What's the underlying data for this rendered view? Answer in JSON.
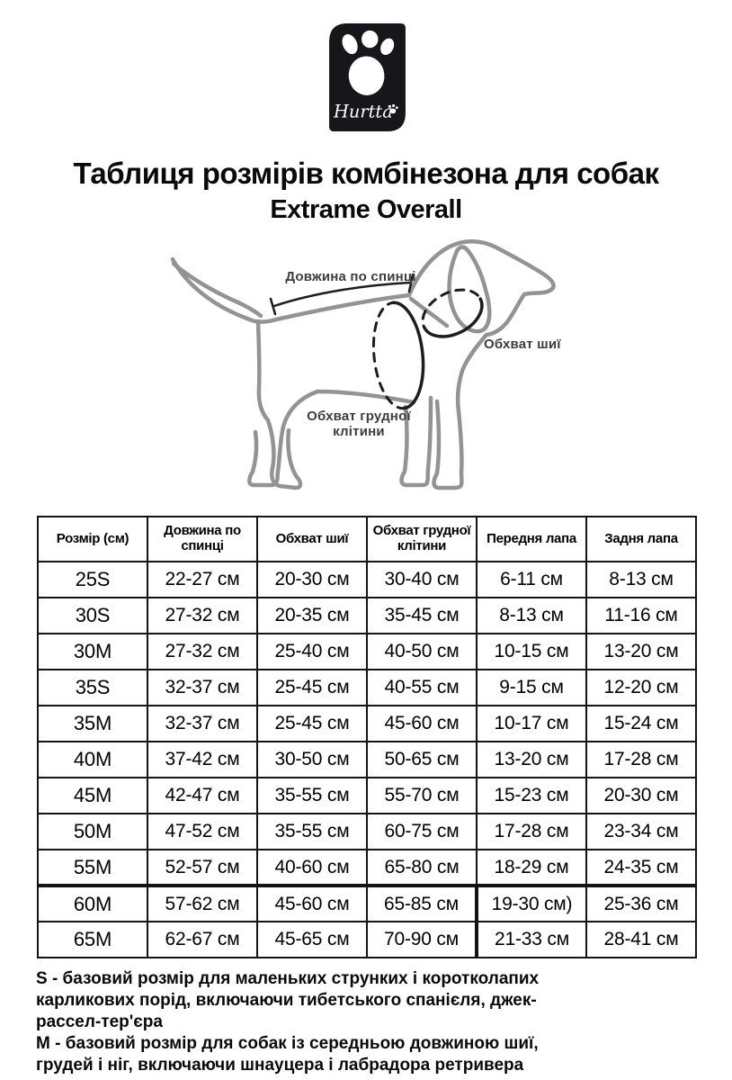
{
  "logo": {
    "brand": "Hurtta"
  },
  "title": {
    "line1": "Таблиця розмірів комбінезона для собак",
    "line2": "Extrame Overall"
  },
  "diagram": {
    "back_length_label": "Довжина по спинці",
    "neck_girth_label": "Обхват шиї",
    "chest_girth_label": "Обхват грудної клітини"
  },
  "table": {
    "headers": [
      "Розмір (см)",
      "Довжина по спинці",
      "Обхват шиї",
      "Обхват грудної клітини",
      "Передня лапа",
      "Задня лапа"
    ],
    "rows": [
      [
        "25S",
        "22-27 см",
        "20-30 см",
        "30-40 см",
        "6-11 см",
        "8-13 см"
      ],
      [
        "30S",
        "27-32 см",
        "20-35 см",
        "35-45 см",
        "8-13 см",
        "11-16 см"
      ],
      [
        "30M",
        "27-32 см",
        "25-40 см",
        "40-50 см",
        "10-15 см",
        "13-20 см"
      ],
      [
        "35S",
        "32-37 см",
        "25-45 см",
        "40-55 см",
        "9-15 см",
        "12-20 см"
      ],
      [
        "35M",
        "32-37 см",
        "25-45 см",
        "45-60 см",
        "10-17 см",
        "15-24 см"
      ],
      [
        "40M",
        "37-42 см",
        "30-50 см",
        "50-65 см",
        "13-20 см",
        "17-28 см"
      ],
      [
        "45M",
        "42-47 см",
        "35-55 см",
        "55-70 см",
        "15-23 см",
        "20-30 см"
      ],
      [
        "50M",
        "47-52 см",
        "35-55 см",
        "60-75 см",
        "17-28 см",
        "23-34 см"
      ],
      [
        "55M",
        "52-57 см",
        "40-60 см",
        "65-80 см",
        "18-29 см",
        "24-35 см"
      ],
      [
        "60M",
        "57-62 см",
        "45-60 см",
        "65-85 см",
        "19-30 см)",
        "25-36 см"
      ],
      [
        "65M",
        "62-67 см",
        "45-65 см",
        "70-90 см",
        "21-33 см",
        "28-41 см"
      ]
    ]
  },
  "notes": {
    "s_note": "S - базовий розмір для маленьких струнких і коротколапих карликових порід, включаючи тибетського спанієля, джек-рассел-тер'єра",
    "m_note": "M - базовий розмір для собак із середньою довжиною шиї, грудей і ніг, включаючи шнауцера і лабрадора ретривера"
  },
  "colors": {
    "logo_bg": "#17171b",
    "dog_outline": "#939393",
    "measure_line": "#1d1d1d",
    "label_text": "#3d3d3d",
    "table_border": "#141414"
  }
}
